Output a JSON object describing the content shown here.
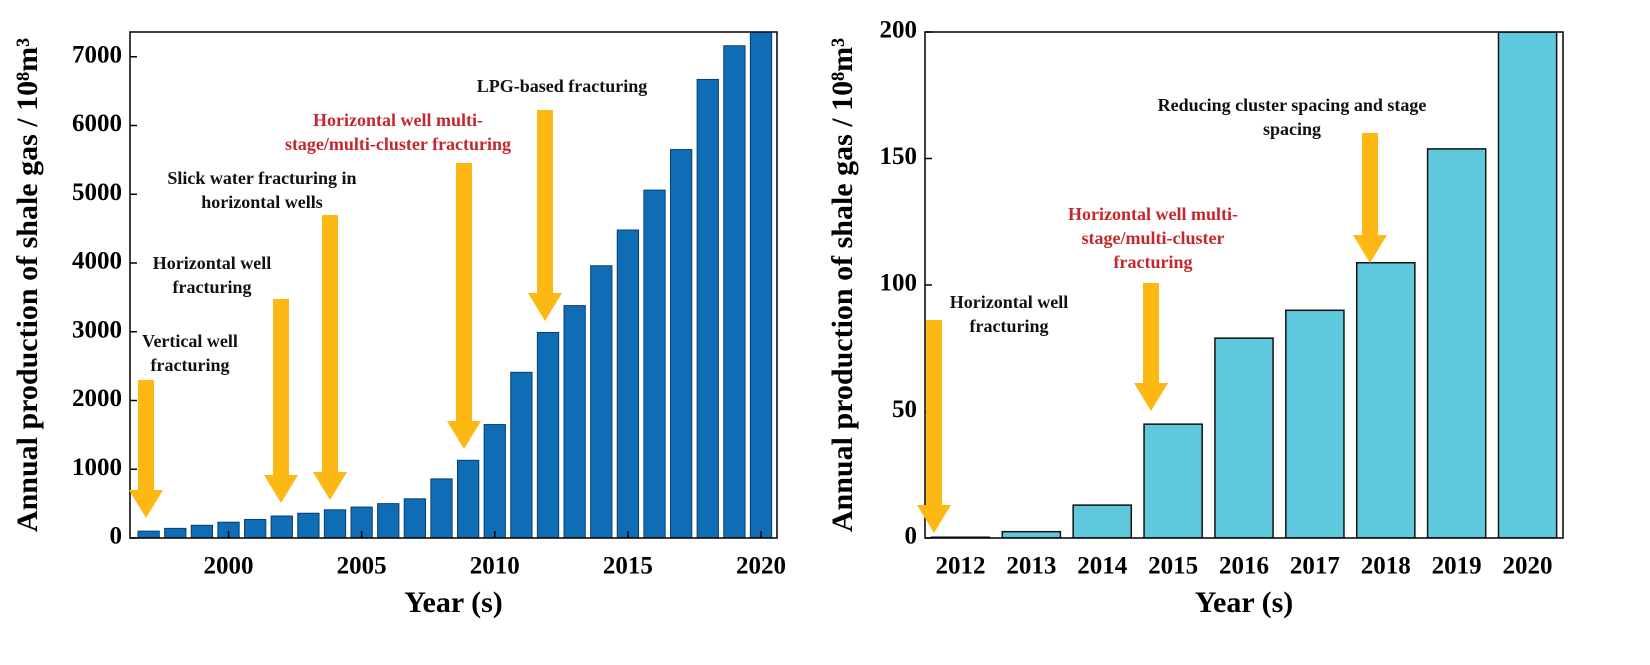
{
  "chart_data": [
    {
      "type": "bar",
      "x_label": "Year (s)",
      "y_label": "Annual production of shale gas / 10⁸m³",
      "x": [
        1997,
        1998,
        1999,
        2000,
        2001,
        2002,
        2003,
        2004,
        2005,
        2006,
        2007,
        2008,
        2009,
        2010,
        2011,
        2012,
        2013,
        2014,
        2015,
        2016,
        2017,
        2018,
        2019,
        2020
      ],
      "values": [
        100,
        140,
        185,
        230,
        270,
        320,
        360,
        410,
        450,
        500,
        570,
        860,
        1130,
        1650,
        2410,
        2990,
        3380,
        3960,
        4480,
        5060,
        5650,
        6670,
        7160,
        7400
      ],
      "color": "#0f6db5",
      "xlim": [
        1996.3,
        2020.6
      ],
      "xticks": [
        2000,
        2005,
        2010,
        2015,
        2020
      ],
      "ylim": [
        0,
        7360
      ],
      "yticks": [
        0,
        1000,
        2000,
        3000,
        4000,
        5000,
        6000,
        7000
      ],
      "grid": false,
      "annotations": [
        {
          "lines": [
            "Vertical well",
            "fracturing"
          ],
          "color": "#111111"
        },
        {
          "lines": [
            "Horizontal well",
            "fracturing"
          ],
          "color": "#111111"
        },
        {
          "lines": [
            "Slick water fracturing in",
            "horizontal wells"
          ],
          "color": "#111111"
        },
        {
          "lines": [
            "Horizontal well multi-",
            "stage/multi-cluster fracturing"
          ],
          "color": "#c3282e"
        },
        {
          "lines": [
            "LPG-based fracturing"
          ],
          "color": "#111111"
        }
      ]
    },
    {
      "type": "bar",
      "x_label": "Year (s)",
      "y_label": "Annual production of shale gas / 10⁸m³",
      "categories": [
        "2012",
        "2013",
        "2014",
        "2015",
        "2016",
        "2017",
        "2018",
        "2019",
        "2020"
      ],
      "values": [
        0.3,
        2.5,
        13,
        45,
        79,
        90,
        108.8,
        153.8,
        200
      ],
      "color": "#5ec8dc",
      "ylim": [
        0,
        200
      ],
      "yticks": [
        0,
        50,
        100,
        150,
        200
      ],
      "grid": false,
      "annotations": [
        {
          "lines": [
            "Horizontal well",
            "fracturing"
          ],
          "color": "#111111"
        },
        {
          "lines": [
            "Horizontal well multi-",
            "stage/multi-cluster",
            "fracturing"
          ],
          "color": "#c3282e"
        },
        {
          "lines": [
            "Reducing cluster spacing and stage",
            "spacing"
          ],
          "color": "#111111"
        }
      ]
    }
  ]
}
